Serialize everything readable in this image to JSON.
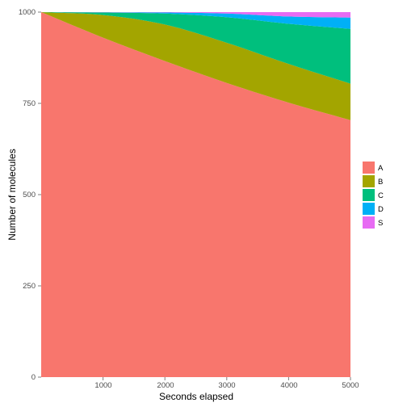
{
  "chart_data": {
    "type": "area",
    "stacked": true,
    "title": "",
    "xlabel": "Seconds elapsed",
    "ylabel": "Number of molecules",
    "xlim": [
      0,
      5000
    ],
    "ylim": [
      0,
      1000
    ],
    "x_ticks": [
      1000,
      2000,
      3000,
      4000,
      5000
    ],
    "y_ticks": [
      0,
      250,
      500,
      750,
      1000
    ],
    "x": [
      0,
      1000,
      2000,
      3000,
      4000,
      5000
    ],
    "series": [
      {
        "name": "A",
        "color": "#F8766D",
        "values": [
          1000,
          930,
          866,
          806,
          752,
          704
        ]
      },
      {
        "name": "B",
        "color": "#A3A500",
        "values": [
          0,
          62,
          100,
          110,
          106,
          100
        ]
      },
      {
        "name": "C",
        "color": "#00BF7D",
        "values": [
          0,
          7,
          30,
          70,
          110,
          150
        ]
      },
      {
        "name": "D",
        "color": "#00B0F6",
        "values": [
          0,
          0.5,
          3,
          10,
          20,
          31
        ]
      },
      {
        "name": "S",
        "color": "#E76BF3",
        "values": [
          0,
          0.5,
          1,
          4,
          12,
          15
        ]
      }
    ],
    "legend_placement": "right",
    "grid": false
  }
}
